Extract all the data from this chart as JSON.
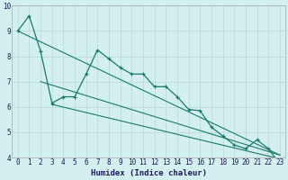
{
  "xlabel": "Humidex (Indice chaleur)",
  "ylabel": "",
  "background_color": "#d4efef",
  "grid_color": "#c0dede",
  "line_color": "#1a7a6a",
  "xlim": [
    -0.5,
    23.5
  ],
  "ylim": [
    4,
    10
  ],
  "yticks": [
    4,
    5,
    6,
    7,
    8,
    9,
    10
  ],
  "xticks": [
    0,
    1,
    2,
    3,
    4,
    5,
    6,
    7,
    8,
    9,
    10,
    11,
    12,
    13,
    14,
    15,
    16,
    17,
    18,
    19,
    20,
    21,
    22,
    23
  ],
  "line1_x": [
    0,
    1,
    2,
    3,
    4,
    5,
    6,
    7,
    8,
    9,
    10,
    11,
    12,
    13,
    14,
    15,
    16,
    17,
    18,
    19,
    20,
    21,
    22,
    23
  ],
  "line1_y": [
    9.0,
    9.6,
    8.2,
    6.15,
    6.4,
    6.4,
    7.3,
    8.25,
    7.9,
    7.55,
    7.3,
    7.3,
    6.8,
    6.8,
    6.4,
    5.9,
    5.85,
    5.2,
    4.85,
    4.5,
    4.35,
    4.7,
    4.35,
    3.75
  ],
  "line2_x": [
    0,
    23
  ],
  "line2_y": [
    9.0,
    4.1
  ],
  "line3_x": [
    2,
    23
  ],
  "line3_y": [
    7.0,
    4.1
  ],
  "line4_x": [
    3,
    23
  ],
  "line4_y": [
    6.1,
    3.95
  ]
}
